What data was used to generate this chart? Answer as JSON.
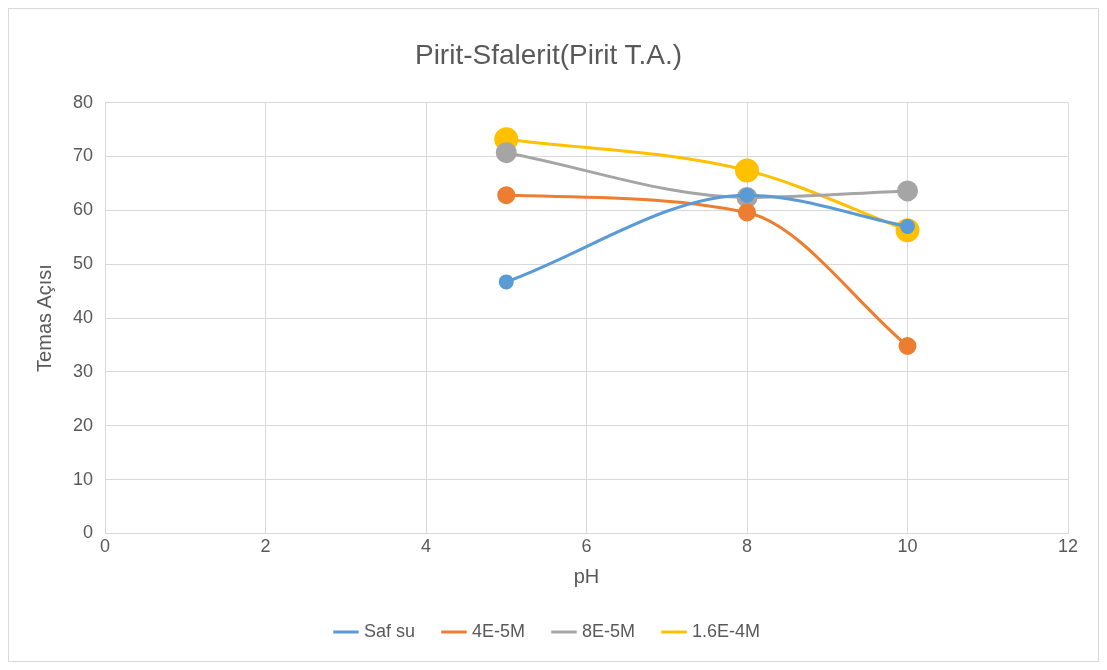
{
  "chart_data": {
    "type": "line",
    "title": "Pirit-Sfalerit(Pirit T.A.)",
    "xlabel": "pH",
    "ylabel": "Temas Açısı",
    "x": [
      5,
      8,
      10
    ],
    "series": [
      {
        "name": "Saf su",
        "color": "#5b9bd5",
        "values": [
          46.7,
          62.8,
          57.0
        ]
      },
      {
        "name": "4E-5M",
        "color": "#ed7d31",
        "values": [
          62.8,
          59.6,
          34.8
        ]
      },
      {
        "name": "8E-5M",
        "color": "#a5a5a5",
        "values": [
          70.7,
          62.4,
          63.6
        ]
      },
      {
        "name": "1.6E-4M",
        "color": "#ffc000",
        "values": [
          73.2,
          67.4,
          56.3
        ]
      }
    ],
    "xlim": [
      0,
      12
    ],
    "xticks": [
      0,
      2,
      4,
      6,
      8,
      10,
      12
    ],
    "ylim": [
      0,
      80
    ],
    "yticks": [
      0,
      10,
      20,
      30,
      40,
      50,
      60,
      70,
      80
    ],
    "grid": true,
    "legend": "bottom",
    "marker": "circle",
    "line_style": "solid"
  }
}
